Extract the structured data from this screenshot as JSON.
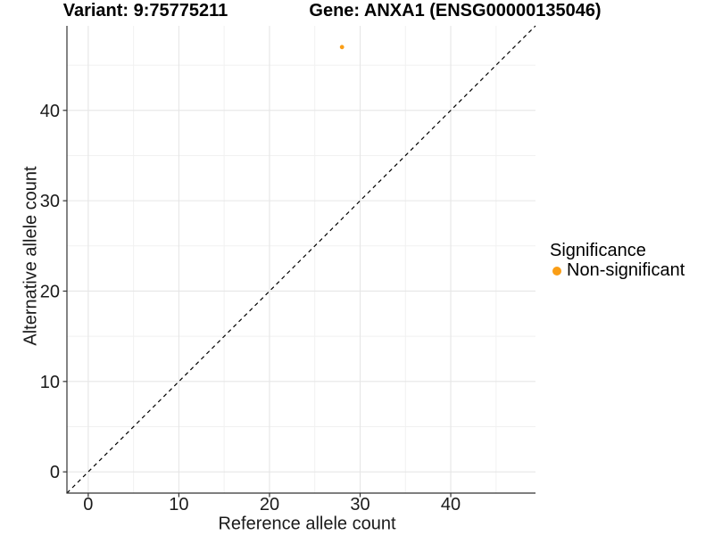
{
  "chart_data": {
    "type": "scatter",
    "titles": {
      "left": "Variant: 9:75775211",
      "right": "Gene: ANXA1 (ENSG00000135046)"
    },
    "xlabel": "Reference allele count",
    "ylabel": "Alternative allele count",
    "xlim": [
      -2.35,
      49.35
    ],
    "ylim": [
      -2.35,
      49.35
    ],
    "xticks": [
      0,
      10,
      20,
      30,
      40
    ],
    "yticks": [
      0,
      10,
      20,
      30,
      40
    ],
    "minor_tick_step": 5,
    "grid": "major+minor",
    "identity_line": {
      "equation": "y = x",
      "style": "dashed",
      "color": "#000000"
    },
    "series": [
      {
        "name": "Non-significant",
        "color": "#FA9E16",
        "points": [
          {
            "x": 28,
            "y": 47
          }
        ]
      }
    ],
    "legend": {
      "position": "right",
      "title": "Significance",
      "entries": [
        {
          "label": "Non-significant",
          "color": "#FA9E16"
        }
      ]
    }
  },
  "style": {
    "background": "#FFFFFF",
    "grid_major_color": "#E6E6E6",
    "grid_minor_color": "#F1F1F1",
    "axis_line_color": "#333333",
    "tick_color": "#333333",
    "tick_label_color": "#1A1A1A"
  }
}
